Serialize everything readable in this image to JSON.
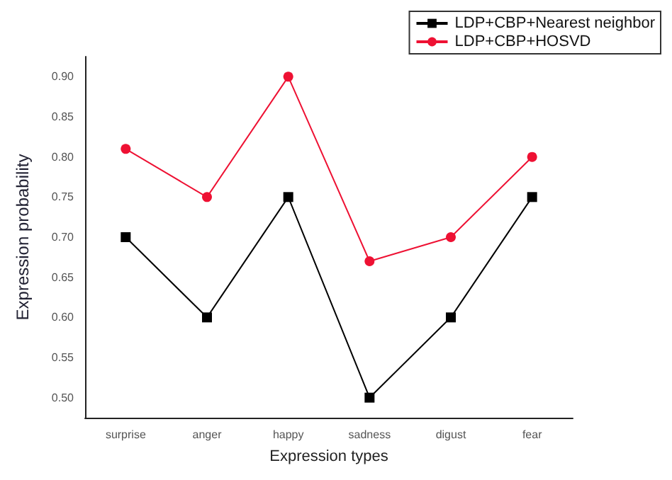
{
  "chart_data": {
    "type": "line",
    "xlabel": "Expression types",
    "ylabel": "Expression probability",
    "categories": [
      "surprise",
      "anger",
      "happy",
      "sadness",
      "digust",
      "fear"
    ],
    "series": [
      {
        "name": "LDP+CBP+Nearest neighbor",
        "color": "#000000",
        "marker": "square",
        "values": [
          0.7,
          0.6,
          0.75,
          0.5,
          0.6,
          0.75
        ]
      },
      {
        "name": "LDP+CBP+HOSVD",
        "color": "#ee1133",
        "marker": "circle",
        "values": [
          0.81,
          0.75,
          0.9,
          0.67,
          0.7,
          0.8
        ]
      }
    ],
    "ylim": [
      0.475,
      0.925
    ],
    "yticks": [
      {
        "value": 0.5,
        "label": "0.50"
      },
      {
        "value": 0.55,
        "label": "0.55"
      },
      {
        "value": 0.6,
        "label": "0.60"
      },
      {
        "value": 0.65,
        "label": "0.65"
      },
      {
        "value": 0.7,
        "label": "0.70"
      },
      {
        "value": 0.75,
        "label": "0.75"
      },
      {
        "value": 0.8,
        "label": "0.80"
      },
      {
        "value": 0.85,
        "label": "0.85"
      },
      {
        "value": 0.9,
        "label": "0.90"
      }
    ],
    "grid": false,
    "legend": "top right"
  }
}
